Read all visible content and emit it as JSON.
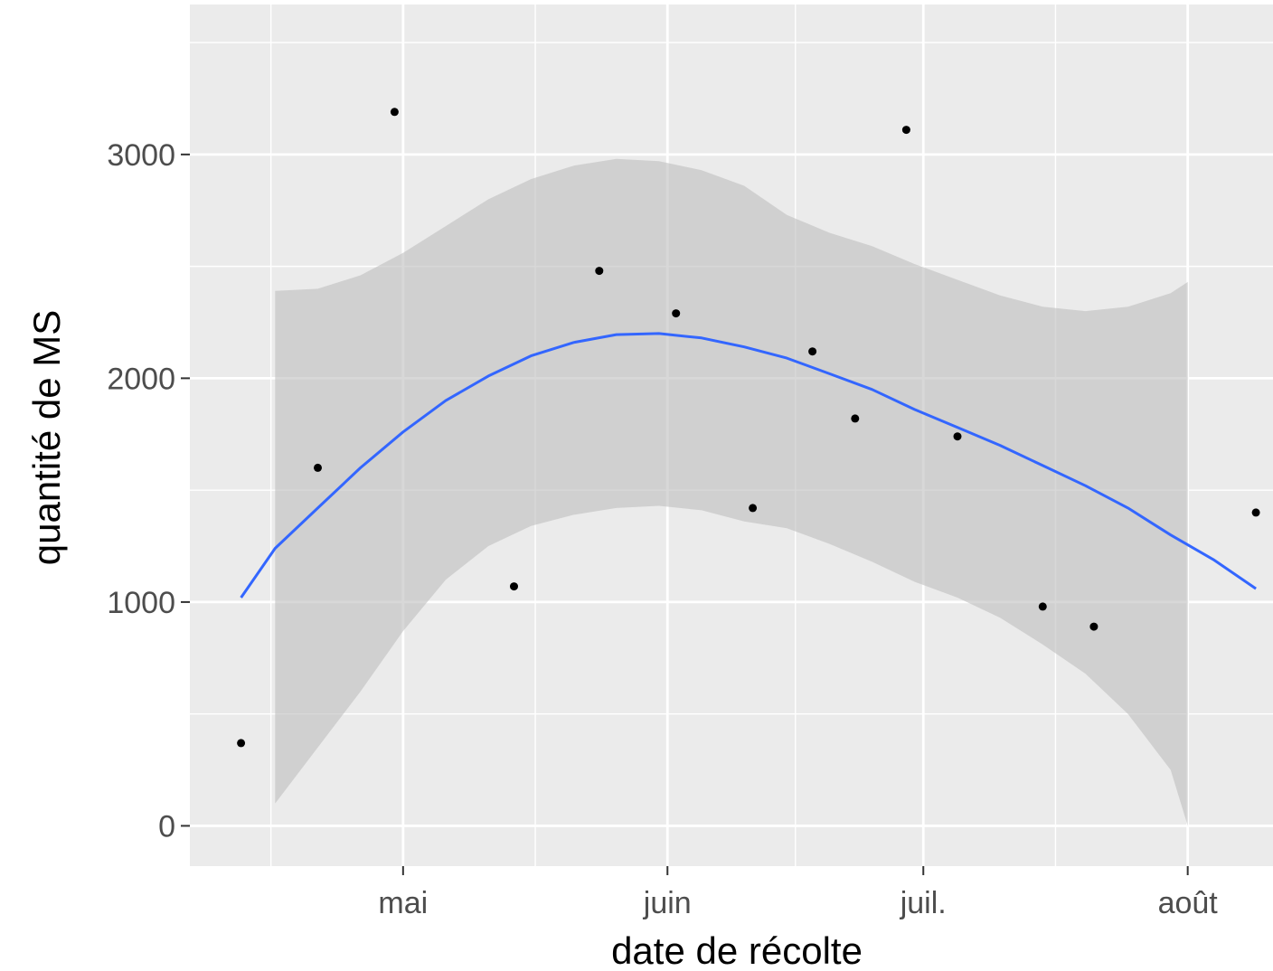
{
  "chart_data": {
    "type": "scatter",
    "xlabel": "date de récolte",
    "ylabel": "quantité de MS",
    "x_ticks": [
      {
        "date": "2019-05-01",
        "label": "mai"
      },
      {
        "date": "2019-06-01",
        "label": "juin"
      },
      {
        "date": "2019-07-01",
        "label": "juil."
      },
      {
        "date": "2019-08-01",
        "label": "août"
      }
    ],
    "y_ticks": [
      0,
      1000,
      2000,
      3000
    ],
    "xlim": [
      "2019-04-06",
      "2019-08-11"
    ],
    "ylim": [
      -180,
      3670
    ],
    "grid": true,
    "colors": {
      "panel": "#ebebeb",
      "grid": "#ffffff",
      "points": "#000000",
      "smooth_line": "#3366ff",
      "ribbon": "#c0c0c0"
    },
    "points": [
      {
        "x": "2019-04-12",
        "y": 370
      },
      {
        "x": "2019-04-21",
        "y": 1600
      },
      {
        "x": "2019-04-30",
        "y": 3190
      },
      {
        "x": "2019-05-14",
        "y": 1070
      },
      {
        "x": "2019-05-24",
        "y": 2480
      },
      {
        "x": "2019-06-02",
        "y": 2290
      },
      {
        "x": "2019-06-11",
        "y": 1420
      },
      {
        "x": "2019-06-18",
        "y": 2120
      },
      {
        "x": "2019-06-23",
        "y": 1820
      },
      {
        "x": "2019-06-29",
        "y": 3110
      },
      {
        "x": "2019-07-05",
        "y": 1740
      },
      {
        "x": "2019-07-15",
        "y": 980
      },
      {
        "x": "2019-07-21",
        "y": 890
      },
      {
        "x": "2019-08-09",
        "y": 1400
      }
    ],
    "smooth": {
      "method": "loess",
      "fit": [
        {
          "x": "2019-04-12",
          "y": 1020
        },
        {
          "x": "2019-04-16",
          "y": 1240
        },
        {
          "x": "2019-04-21",
          "y": 1420
        },
        {
          "x": "2019-04-26",
          "y": 1600
        },
        {
          "x": "2019-05-01",
          "y": 1760
        },
        {
          "x": "2019-05-06",
          "y": 1900
        },
        {
          "x": "2019-05-11",
          "y": 2010
        },
        {
          "x": "2019-05-16",
          "y": 2100
        },
        {
          "x": "2019-05-21",
          "y": 2160
        },
        {
          "x": "2019-05-26",
          "y": 2195
        },
        {
          "x": "2019-05-31",
          "y": 2200
        },
        {
          "x": "2019-06-05",
          "y": 2180
        },
        {
          "x": "2019-06-10",
          "y": 2140
        },
        {
          "x": "2019-06-15",
          "y": 2090
        },
        {
          "x": "2019-06-20",
          "y": 2020
        },
        {
          "x": "2019-06-25",
          "y": 1950
        },
        {
          "x": "2019-06-30",
          "y": 1860
        },
        {
          "x": "2019-07-05",
          "y": 1780
        },
        {
          "x": "2019-07-10",
          "y": 1700
        },
        {
          "x": "2019-07-15",
          "y": 1610
        },
        {
          "x": "2019-07-20",
          "y": 1520
        },
        {
          "x": "2019-07-25",
          "y": 1420
        },
        {
          "x": "2019-07-30",
          "y": 1300
        },
        {
          "x": "2019-08-04",
          "y": 1190
        },
        {
          "x": "2019-08-09",
          "y": 1060
        }
      ],
      "band": [
        {
          "x": "2019-04-16",
          "lower": 100,
          "upper": 2390
        },
        {
          "x": "2019-04-21",
          "lower": 350,
          "upper": 2400
        },
        {
          "x": "2019-04-26",
          "lower": 600,
          "upper": 2460
        },
        {
          "x": "2019-05-01",
          "lower": 870,
          "upper": 2560
        },
        {
          "x": "2019-05-06",
          "lower": 1100,
          "upper": 2680
        },
        {
          "x": "2019-05-11",
          "lower": 1250,
          "upper": 2800
        },
        {
          "x": "2019-05-16",
          "lower": 1340,
          "upper": 2890
        },
        {
          "x": "2019-05-21",
          "lower": 1390,
          "upper": 2950
        },
        {
          "x": "2019-05-26",
          "lower": 1420,
          "upper": 2980
        },
        {
          "x": "2019-05-31",
          "lower": 1430,
          "upper": 2970
        },
        {
          "x": "2019-06-05",
          "lower": 1410,
          "upper": 2930
        },
        {
          "x": "2019-06-10",
          "lower": 1360,
          "upper": 2860
        },
        {
          "x": "2019-06-15",
          "lower": 1330,
          "upper": 2730
        },
        {
          "x": "2019-06-20",
          "lower": 1260,
          "upper": 2650
        },
        {
          "x": "2019-06-25",
          "lower": 1180,
          "upper": 2590
        },
        {
          "x": "2019-06-30",
          "lower": 1090,
          "upper": 2510
        },
        {
          "x": "2019-07-05",
          "lower": 1020,
          "upper": 2440
        },
        {
          "x": "2019-07-10",
          "lower": 930,
          "upper": 2370
        },
        {
          "x": "2019-07-15",
          "lower": 810,
          "upper": 2320
        },
        {
          "x": "2019-07-20",
          "lower": 680,
          "upper": 2300
        },
        {
          "x": "2019-07-25",
          "lower": 500,
          "upper": 2320
        },
        {
          "x": "2019-07-30",
          "lower": 250,
          "upper": 2380
        },
        {
          "x": "2019-08-01",
          "lower": 0,
          "upper": 2430
        }
      ]
    }
  }
}
